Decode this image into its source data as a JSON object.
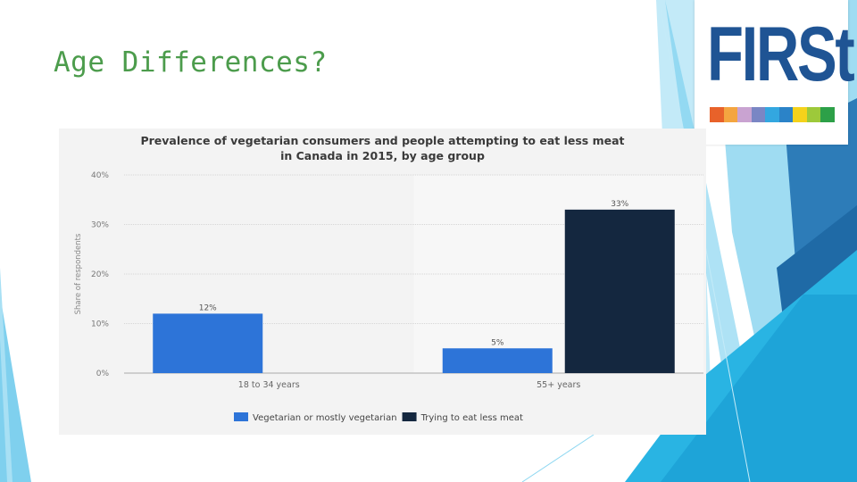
{
  "slide": {
    "title": "Age Differences?"
  },
  "logo": {
    "text": "FIRSt",
    "text_color": "#1f5494",
    "stripe_colors": [
      "#e8622a",
      "#f4a540",
      "#c9a3d1",
      "#7a86c4",
      "#33a7e0",
      "#2b83c8",
      "#f5d21b",
      "#9dc93a",
      "#2da048"
    ]
  },
  "chart_data": {
    "type": "bar",
    "title_lines": [
      "Prevalence of vegetarian consumers and people attempting to eat less meat",
      "in Canada in 2015, by age group"
    ],
    "categories": [
      "18 to 34 years",
      "55+ years"
    ],
    "series": [
      {
        "name": "Vegetarian or mostly vegetarian",
        "color": "#2d74d8",
        "values": [
          12,
          5
        ]
      },
      {
        "name": "Trying to eat less meat",
        "color": "#14273f",
        "values": [
          null,
          33
        ]
      }
    ],
    "data_labels": [
      [
        "12%",
        "5%"
      ],
      [
        null,
        "33%"
      ]
    ],
    "ylabel": "Share of respondents",
    "ylim": [
      0,
      40
    ],
    "yticks": [
      0,
      10,
      20,
      30,
      40
    ],
    "ytick_labels": [
      "0%",
      "10%",
      "20%",
      "30%",
      "40%"
    ],
    "grid": true,
    "legend_position": "bottom"
  }
}
